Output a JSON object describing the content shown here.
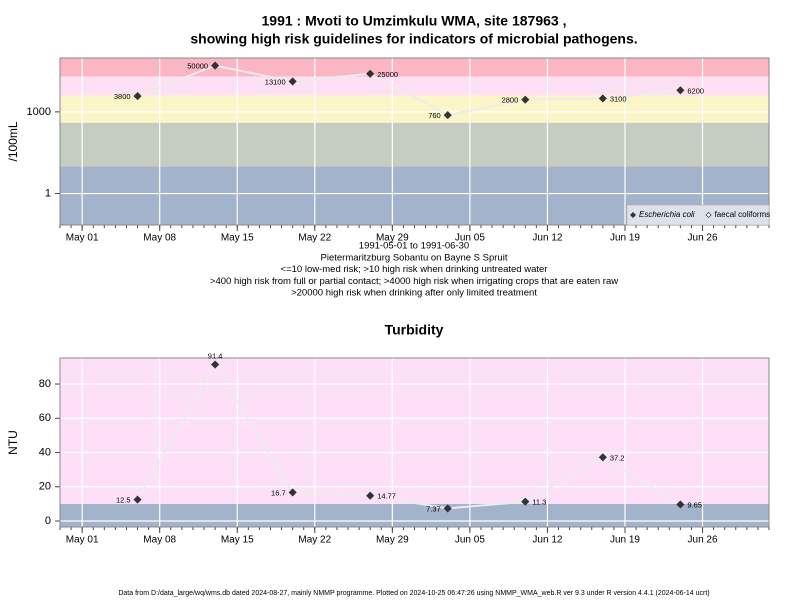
{
  "chart_data": [
    {
      "type": "line",
      "title": "1991 : Mvoti to Umzimkulu WMA, site 187963 ,",
      "subtitle": "showing high risk guidelines for indicators of microbial pathogens.",
      "ylabel": "/100mL",
      "notes": [
        "1991-05-01 to 1991-06-30",
        "Pietermaritzburg Sobantu on Bayne S Spruit",
        "<=10 low-med risk; >10 high risk when drinking untreated water",
        ">400 high risk from full or partial contact; >4000 high risk when irrigating crops that are eaten raw",
        ">20000 high risk when drinking after only limited treatment"
      ],
      "x": [
        "1991-05-06",
        "1991-05-13",
        "1991-05-20",
        "1991-05-27",
        "1991-06-03",
        "1991-06-10",
        "1991-06-17",
        "1991-06-24"
      ],
      "series": [
        {
          "name": "Escherichia coli",
          "color": "#333333",
          "marker": "filled",
          "font_style": "italic",
          "line_color": "#ececec",
          "values": [
            3800,
            50000,
            13100,
            25000,
            760,
            2800,
            3100,
            6200
          ]
        },
        {
          "name": "faecal coliforms",
          "color": "#333333",
          "marker": "open",
          "font_style": "normal",
          "line_color": "#ececec",
          "values": [
            null,
            null,
            null,
            null,
            null,
            null,
            null,
            null
          ]
        }
      ],
      "log_scale": true,
      "xlim": [
        "1991-04-29",
        "1991-07-02"
      ],
      "xticks": [
        {
          "value": "1991-05-01",
          "label": "May 01"
        },
        {
          "value": "1991-05-08",
          "label": "May 08"
        },
        {
          "value": "1991-05-15",
          "label": "May 15"
        },
        {
          "value": "1991-05-22",
          "label": "May 22"
        },
        {
          "value": "1991-05-29",
          "label": "May 29"
        },
        {
          "value": "1991-06-05",
          "label": "Jun 05"
        },
        {
          "value": "1991-06-12",
          "label": "Jun 12"
        },
        {
          "value": "1991-06-19",
          "label": "Jun 19"
        },
        {
          "value": "1991-06-26",
          "label": "Jun 26"
        }
      ],
      "ylim": [
        0.07,
        95000
      ],
      "yticks": [
        1,
        1000
      ],
      "bands": {
        "breaks": [
          10,
          400,
          4000,
          20000
        ],
        "colors": [
          "#a3b3cb",
          "#c5cdc1",
          "#fbf5c8",
          "#fde0f4",
          "#fbb6c4"
        ]
      },
      "grid": true,
      "legend": "bottom-right"
    },
    {
      "type": "line",
      "title": "Turbidity",
      "ylabel": "NTU",
      "x": [
        "1991-05-06",
        "1991-05-13",
        "1991-05-20",
        "1991-05-27",
        "1991-06-03",
        "1991-06-10",
        "1991-06-17",
        "1991-06-24"
      ],
      "series": [
        {
          "color": "#333333",
          "marker": "filled",
          "line_color": "#ececec",
          "values": [
            12.5,
            91.4,
            16.7,
            14.77,
            7.37,
            11.3,
            37.2,
            9.65
          ]
        }
      ],
      "log_scale": false,
      "xlim": [
        "1991-04-29",
        "1991-07-02"
      ],
      "xticks": [
        {
          "value": "1991-05-01",
          "label": "May 01"
        },
        {
          "value": "1991-05-08",
          "label": "May 08"
        },
        {
          "value": "1991-05-15",
          "label": "May 15"
        },
        {
          "value": "1991-05-22",
          "label": "May 22"
        },
        {
          "value": "1991-05-29",
          "label": "May 29"
        },
        {
          "value": "1991-06-05",
          "label": "Jun 05"
        },
        {
          "value": "1991-06-12",
          "label": "Jun 12"
        },
        {
          "value": "1991-06-19",
          "label": "Jun 19"
        },
        {
          "value": "1991-06-26",
          "label": "Jun 26"
        }
      ],
      "ylim": [
        -3.5,
        95.2
      ],
      "yticks": [
        0,
        20,
        40,
        60,
        80
      ],
      "bands": {
        "breaks": [
          10
        ],
        "colors": [
          "#a3b3cb",
          "#fde0f8"
        ]
      },
      "grid": true
    }
  ],
  "footer": "Data from D:/data_large/wq/wms.db dated 2024-08-27, mainly NMMP programme. Plotted on 2024-10-25 06:47:26 using NMMP_WMA_web.R ver 9.3 under R version 4.4.1 (2024-06-14 ucrt)"
}
